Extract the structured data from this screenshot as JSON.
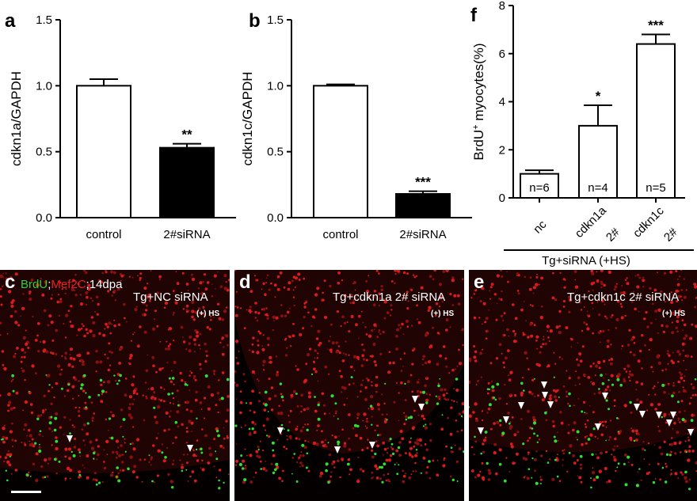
{
  "chart_data": [
    {
      "type": "bar",
      "panel": "a",
      "categories": [
        "control",
        "2#siRNA"
      ],
      "values": [
        1.0,
        0.53
      ],
      "errors": [
        0.05,
        0.03
      ],
      "significance": [
        "",
        "**"
      ],
      "fills": [
        "#ffffff",
        "#000000"
      ],
      "ylabel": "cdkn1a/GAPDH",
      "ylim": [
        0,
        1.5
      ],
      "yticks": [
        "0.0",
        "0.5",
        "1.0",
        "1.5"
      ]
    },
    {
      "type": "bar",
      "panel": "b",
      "categories": [
        "control",
        "2#siRNA"
      ],
      "values": [
        1.0,
        0.18
      ],
      "errors": [
        0.01,
        0.02
      ],
      "significance": [
        "",
        "***"
      ],
      "fills": [
        "#ffffff",
        "#000000"
      ],
      "ylabel": "cdkn1c/GAPDH",
      "ylim": [
        0,
        1.5
      ],
      "yticks": [
        "0.0",
        "0.5",
        "1.0",
        "1.5"
      ]
    },
    {
      "type": "bar",
      "panel": "f",
      "categories": [
        [
          "nc"
        ],
        [
          "cdkn1a",
          "2#"
        ],
        [
          "cdkn1c",
          "2#"
        ]
      ],
      "values": [
        1.0,
        3.0,
        6.4
      ],
      "errors": [
        0.15,
        0.85,
        0.4
      ],
      "significance": [
        "",
        "*",
        "***"
      ],
      "n_labels": [
        "n=6",
        "n=4",
        "n=5"
      ],
      "fills": [
        "#ffffff",
        "#ffffff",
        "#ffffff"
      ],
      "ylabel_main": "BrdU",
      "ylabel_sup": "+",
      "ylabel_rest": " myocytes(%)",
      "ylim": [
        0,
        8
      ],
      "yticks": [
        "0",
        "2",
        "4",
        "6",
        "8"
      ],
      "group_label": "Tg+siRNA (+HS)"
    }
  ],
  "micrographs": [
    {
      "letter": "c",
      "stain_brdu": "BrdU",
      "stain_sep": ";",
      "stain_mef": "Mef2C",
      "stain_time": ";14dpa",
      "title": "Tg+NC siRNA",
      "subtitle": "(+) HS"
    },
    {
      "letter": "d",
      "title": "Tg+cdkn1a 2# siRNA",
      "subtitle": "(+) HS"
    },
    {
      "letter": "e",
      "title": "Tg+cdkn1c 2# siRNA",
      "subtitle": "(+) HS"
    }
  ]
}
